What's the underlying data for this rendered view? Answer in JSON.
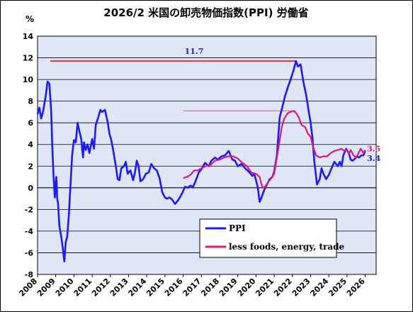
{
  "chart_data": {
    "type": "line",
    "title": "2026/2  米国の卸売物価指数(PPI)  労働省",
    "ylabel": "%",
    "xlabel": "",
    "ylim": [
      -8,
      14
    ],
    "yticks": [
      14,
      12,
      10,
      8,
      6,
      4,
      2,
      0,
      -2,
      -4,
      -6,
      -8
    ],
    "xlim": [
      2008,
      2026.6
    ],
    "xticks": [
      "2008",
      "2009",
      "2010",
      "2011",
      "2012",
      "2013",
      "2014",
      "2015",
      "2016",
      "2017",
      "2018",
      "2019",
      "2020",
      "2021",
      "2022",
      "2023",
      "2024",
      "2025",
      "2026"
    ],
    "grid": true,
    "legend_position": "lower-right",
    "colors": {
      "plot_bg": "#dfe6f7",
      "ppi": "#1a1aff",
      "core": "#dd1a7a",
      "peak_line": "#e03030",
      "core_peak_line": "#e070a8",
      "ann_blue": "#2020dd",
      "ann_purple": "#cc2288"
    },
    "annotations": {
      "peak": {
        "text": "11.7",
        "x": 2016.6,
        "y": 12.35
      },
      "core_last": {
        "text": "3.5",
        "x": 2026.1,
        "y": 3.5
      },
      "ppi_last": {
        "text": "3.4",
        "x": 2026.1,
        "y": 2.75
      }
    },
    "reference_lines": [
      {
        "name": "peak",
        "y": 11.7,
        "x_start": 2008.7,
        "x_end": 2022.2
      },
      {
        "name": "core-peak",
        "y": 7.1,
        "x_start": 2016.0,
        "x_end": 2022.2
      }
    ],
    "series": [
      {
        "name": "PPI",
        "points": [
          [
            2008.0,
            6.8
          ],
          [
            2008.1,
            7.4
          ],
          [
            2008.2,
            6.4
          ],
          [
            2008.3,
            7.0
          ],
          [
            2008.45,
            8.5
          ],
          [
            2008.55,
            9.8
          ],
          [
            2008.65,
            9.6
          ],
          [
            2008.75,
            7.0
          ],
          [
            2008.8,
            4.2
          ],
          [
            2008.88,
            1.0
          ],
          [
            2008.95,
            -0.9
          ],
          [
            2009.0,
            0.5
          ],
          [
            2009.03,
            1.0
          ],
          [
            2009.08,
            -1.0
          ],
          [
            2009.13,
            -1.5
          ],
          [
            2009.2,
            -3.5
          ],
          [
            2009.3,
            -4.5
          ],
          [
            2009.38,
            -5.5
          ],
          [
            2009.47,
            -6.8
          ],
          [
            2009.55,
            -5.0
          ],
          [
            2009.63,
            -4.5
          ],
          [
            2009.72,
            -2.5
          ],
          [
            2009.8,
            0.0
          ],
          [
            2009.9,
            3.0
          ],
          [
            2010.0,
            4.4
          ],
          [
            2010.1,
            4.2
          ],
          [
            2010.2,
            6.0
          ],
          [
            2010.3,
            5.2
          ],
          [
            2010.4,
            4.5
          ],
          [
            2010.5,
            2.8
          ],
          [
            2010.55,
            4.2
          ],
          [
            2010.65,
            3.5
          ],
          [
            2010.75,
            4.0
          ],
          [
            2010.85,
            3.2
          ],
          [
            2011.0,
            4.5
          ],
          [
            2011.1,
            3.6
          ],
          [
            2011.2,
            5.8
          ],
          [
            2011.35,
            6.6
          ],
          [
            2011.45,
            7.2
          ],
          [
            2011.55,
            7.0
          ],
          [
            2011.7,
            7.2
          ],
          [
            2011.85,
            6.1
          ],
          [
            2011.95,
            5.0
          ],
          [
            2012.05,
            4.4
          ],
          [
            2012.15,
            3.5
          ],
          [
            2012.3,
            2.0
          ],
          [
            2012.4,
            0.8
          ],
          [
            2012.5,
            0.7
          ],
          [
            2012.6,
            1.8
          ],
          [
            2012.75,
            2.0
          ],
          [
            2012.85,
            2.4
          ],
          [
            2012.95,
            1.3
          ],
          [
            2013.1,
            1.6
          ],
          [
            2013.25,
            0.7
          ],
          [
            2013.35,
            1.4
          ],
          [
            2013.45,
            2.5
          ],
          [
            2013.55,
            2.0
          ],
          [
            2013.65,
            0.6
          ],
          [
            2013.8,
            0.8
          ],
          [
            2013.95,
            1.3
          ],
          [
            2014.1,
            1.4
          ],
          [
            2014.25,
            2.2
          ],
          [
            2014.4,
            1.8
          ],
          [
            2014.55,
            1.6
          ],
          [
            2014.7,
            0.9
          ],
          [
            2014.85,
            -0.4
          ],
          [
            2015.0,
            -0.9
          ],
          [
            2015.1,
            -1.0
          ],
          [
            2015.25,
            -0.9
          ],
          [
            2015.4,
            -1.1
          ],
          [
            2015.55,
            -1.5
          ],
          [
            2015.7,
            -1.2
          ],
          [
            2015.85,
            -0.8
          ],
          [
            2016.0,
            -0.3
          ],
          [
            2016.1,
            0.1
          ],
          [
            2016.25,
            0.0
          ],
          [
            2016.4,
            0.2
          ],
          [
            2016.55,
            0.1
          ],
          [
            2016.7,
            0.7
          ],
          [
            2016.85,
            1.4
          ],
          [
            2017.0,
            1.7
          ],
          [
            2017.2,
            2.3
          ],
          [
            2017.4,
            2.0
          ],
          [
            2017.55,
            2.5
          ],
          [
            2017.75,
            2.8
          ],
          [
            2017.9,
            2.6
          ],
          [
            2018.1,
            2.9
          ],
          [
            2018.3,
            3.0
          ],
          [
            2018.5,
            3.4
          ],
          [
            2018.7,
            2.6
          ],
          [
            2018.85,
            2.5
          ],
          [
            2019.0,
            2.0
          ],
          [
            2019.2,
            2.2
          ],
          [
            2019.4,
            1.8
          ],
          [
            2019.6,
            1.5
          ],
          [
            2019.8,
            1.1
          ],
          [
            2019.9,
            1.3
          ],
          [
            2020.0,
            0.7
          ],
          [
            2020.1,
            0.0
          ],
          [
            2020.2,
            -1.3
          ],
          [
            2020.3,
            -0.9
          ],
          [
            2020.45,
            -0.2
          ],
          [
            2020.6,
            0.3
          ],
          [
            2020.75,
            0.8
          ],
          [
            2020.9,
            1.0
          ],
          [
            2021.0,
            1.5
          ],
          [
            2021.15,
            3.0
          ],
          [
            2021.3,
            6.5
          ],
          [
            2021.45,
            7.5
          ],
          [
            2021.6,
            8.5
          ],
          [
            2021.75,
            9.3
          ],
          [
            2021.9,
            10.0
          ],
          [
            2022.05,
            10.8
          ],
          [
            2022.2,
            11.7
          ],
          [
            2022.3,
            11.2
          ],
          [
            2022.45,
            11.4
          ],
          [
            2022.6,
            9.8
          ],
          [
            2022.75,
            8.6
          ],
          [
            2022.9,
            7.0
          ],
          [
            2023.0,
            6.0
          ],
          [
            2023.1,
            4.6
          ],
          [
            2023.2,
            2.5
          ],
          [
            2023.35,
            0.3
          ],
          [
            2023.5,
            0.8
          ],
          [
            2023.6,
            1.8
          ],
          [
            2023.7,
            1.3
          ],
          [
            2023.85,
            0.8
          ],
          [
            2024.0,
            1.2
          ],
          [
            2024.15,
            1.8
          ],
          [
            2024.3,
            2.4
          ],
          [
            2024.5,
            2.0
          ],
          [
            2024.6,
            2.4
          ],
          [
            2024.7,
            2.0
          ],
          [
            2024.8,
            3.0
          ],
          [
            2024.95,
            3.6
          ],
          [
            2025.1,
            3.2
          ],
          [
            2025.2,
            2.6
          ],
          [
            2025.3,
            2.5
          ],
          [
            2025.45,
            2.7
          ],
          [
            2025.55,
            2.9
          ],
          [
            2025.65,
            2.8
          ],
          [
            2025.8,
            3.0
          ],
          [
            2025.9,
            3.0
          ],
          [
            2026.0,
            3.4
          ]
        ]
      },
      {
        "name": "less foods, energy, trade",
        "points": [
          [
            2016.0,
            0.9
          ],
          [
            2016.2,
            1.0
          ],
          [
            2016.4,
            1.2
          ],
          [
            2016.6,
            1.6
          ],
          [
            2016.8,
            1.6
          ],
          [
            2017.0,
            1.8
          ],
          [
            2017.25,
            2.0
          ],
          [
            2017.5,
            2.1
          ],
          [
            2017.75,
            2.5
          ],
          [
            2018.0,
            2.6
          ],
          [
            2018.25,
            2.8
          ],
          [
            2018.5,
            2.9
          ],
          [
            2018.75,
            2.9
          ],
          [
            2019.0,
            2.7
          ],
          [
            2019.25,
            2.3
          ],
          [
            2019.5,
            2.0
          ],
          [
            2019.75,
            1.4
          ],
          [
            2020.0,
            1.3
          ],
          [
            2020.2,
            1.0
          ],
          [
            2020.35,
            0.0
          ],
          [
            2020.5,
            0.1
          ],
          [
            2020.7,
            0.6
          ],
          [
            2020.9,
            1.0
          ],
          [
            2021.0,
            1.3
          ],
          [
            2021.2,
            3.3
          ],
          [
            2021.4,
            5.5
          ],
          [
            2021.55,
            6.4
          ],
          [
            2021.75,
            6.9
          ],
          [
            2021.9,
            7.0
          ],
          [
            2022.05,
            7.1
          ],
          [
            2022.2,
            6.9
          ],
          [
            2022.35,
            6.5
          ],
          [
            2022.5,
            5.8
          ],
          [
            2022.7,
            5.6
          ],
          [
            2022.85,
            5.0
          ],
          [
            2023.0,
            4.7
          ],
          [
            2023.15,
            3.7
          ],
          [
            2023.3,
            3.0
          ],
          [
            2023.5,
            2.8
          ],
          [
            2023.7,
            2.9
          ],
          [
            2023.9,
            2.9
          ],
          [
            2024.1,
            3.2
          ],
          [
            2024.3,
            3.4
          ],
          [
            2024.5,
            3.5
          ],
          [
            2024.7,
            3.6
          ],
          [
            2024.85,
            3.4
          ],
          [
            2025.0,
            3.5
          ],
          [
            2025.1,
            3.1
          ],
          [
            2025.2,
            3.5
          ],
          [
            2025.35,
            3.0
          ],
          [
            2025.5,
            2.8
          ],
          [
            2025.6,
            3.1
          ],
          [
            2025.75,
            3.6
          ],
          [
            2025.9,
            3.2
          ],
          [
            2026.0,
            3.5
          ]
        ]
      }
    ]
  }
}
